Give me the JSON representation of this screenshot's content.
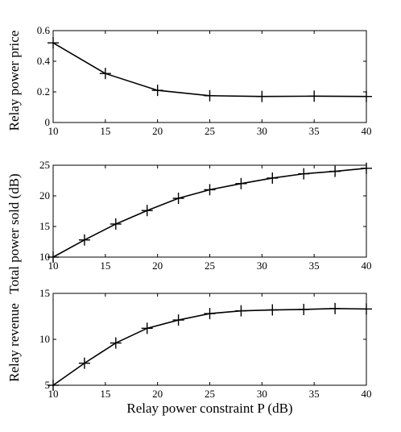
{
  "chart_data": [
    {
      "type": "line",
      "title": "",
      "xlabel": "",
      "ylabel": "Relay power price",
      "xlim": [
        10,
        40
      ],
      "ylim": [
        0,
        0.6
      ],
      "xticks": [
        10,
        15,
        20,
        25,
        30,
        35,
        40
      ],
      "yticks": [
        0,
        0.2,
        0.4,
        0.6
      ],
      "grid": false,
      "series": [
        {
          "x": [
            10,
            15,
            20,
            25,
            30,
            35,
            40
          ],
          "y": [
            0.52,
            0.32,
            0.21,
            0.175,
            0.17,
            0.172,
            0.17
          ]
        }
      ]
    },
    {
      "type": "line",
      "title": "",
      "xlabel": "",
      "ylabel": "Total power sold (dB)",
      "xlim": [
        10,
        40
      ],
      "ylim": [
        10,
        25
      ],
      "xticks": [
        10,
        15,
        20,
        25,
        30,
        35,
        40
      ],
      "yticks": [
        10,
        15,
        20,
        25
      ],
      "grid": false,
      "series": [
        {
          "x": [
            10,
            13,
            16,
            19,
            22,
            25,
            28,
            31,
            34,
            37,
            40
          ],
          "y": [
            10,
            12.8,
            15.4,
            17.6,
            19.6,
            21.0,
            22.0,
            22.9,
            23.6,
            24.0,
            24.5
          ]
        }
      ]
    },
    {
      "type": "line",
      "title": "",
      "xlabel": "Relay power constraint P (dB)",
      "ylabel": "Relay revenue",
      "xlim": [
        10,
        40
      ],
      "ylim": [
        5,
        15
      ],
      "xticks": [
        10,
        15,
        20,
        25,
        30,
        35,
        40
      ],
      "yticks": [
        5,
        10,
        15
      ],
      "grid": false,
      "series": [
        {
          "x": [
            10,
            13,
            16,
            19,
            22,
            25,
            28,
            31,
            34,
            37,
            40
          ],
          "y": [
            5.0,
            7.4,
            9.6,
            11.2,
            12.1,
            12.8,
            13.1,
            13.2,
            13.25,
            13.35,
            13.3
          ]
        }
      ]
    }
  ]
}
